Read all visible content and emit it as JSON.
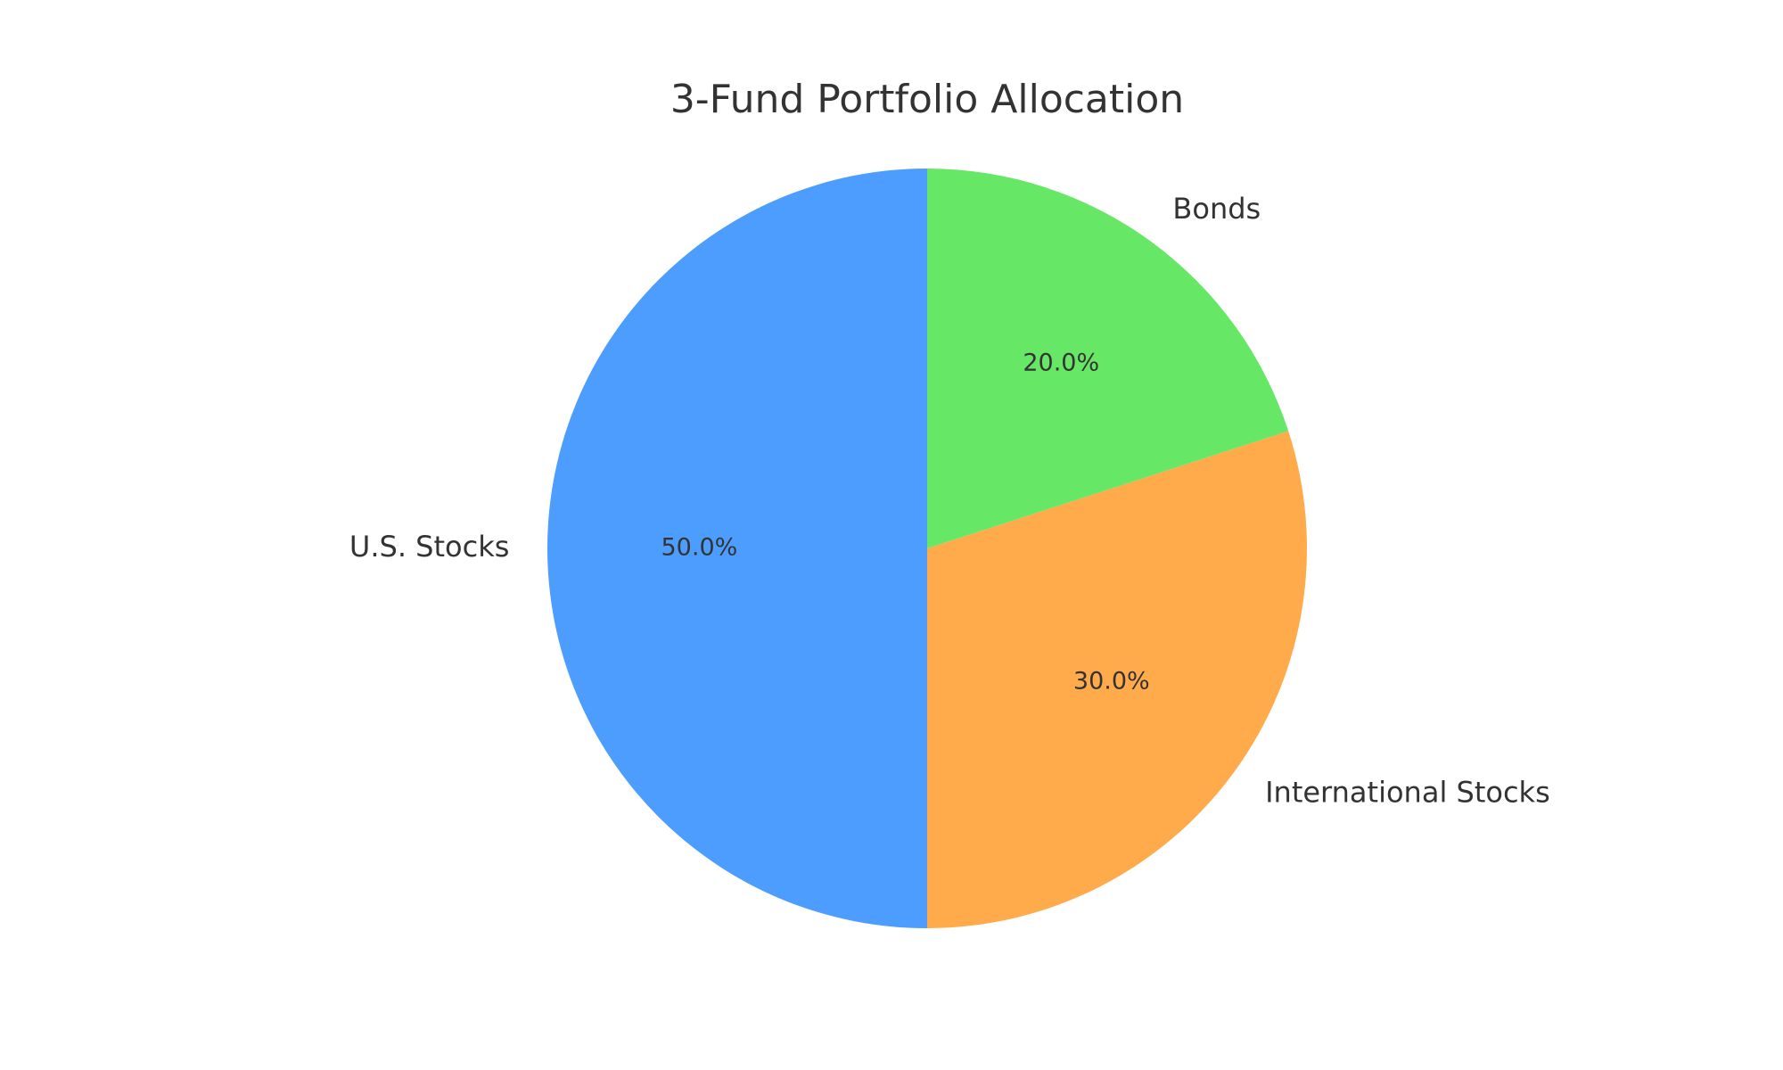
{
  "chart_data": {
    "type": "pie",
    "title": "3-Fund Portfolio Allocation",
    "categories": [
      "U.S. Stocks",
      "International Stocks",
      "Bonds"
    ],
    "values": [
      50,
      30,
      20
    ],
    "value_labels": [
      "50.0%",
      "30.0%",
      "20.0%"
    ],
    "colors": [
      "#4d9dff",
      "#ffab4c",
      "#66e766"
    ],
    "start_angle": 90,
    "counterclockwise": true
  }
}
